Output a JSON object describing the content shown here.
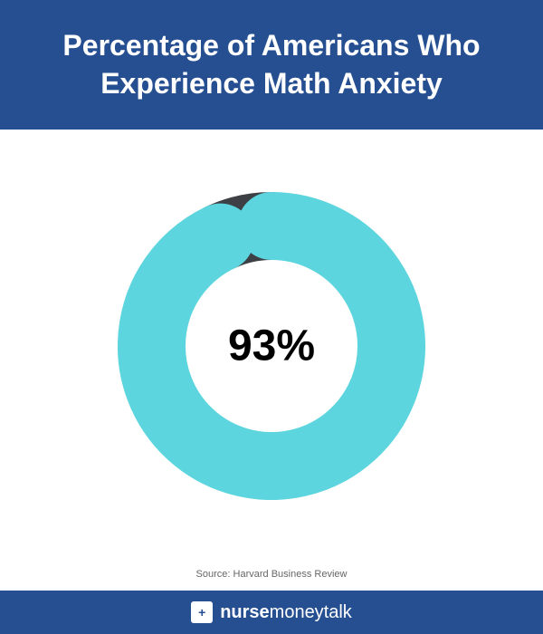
{
  "header": {
    "title": "Percentage of Americans Who Experience Math Anxiety",
    "background_color": "#254f91",
    "title_color": "#ffffff",
    "title_fontsize": 32,
    "title_weight": 700
  },
  "chart": {
    "type": "donut",
    "percentage": 93,
    "percentage_label": "93%",
    "percentage_fontsize": 48,
    "percentage_weight": 700,
    "percentage_color": "#000000",
    "primary_color": "#5dd5de",
    "secondary_color": "#3d4044",
    "background_color": "#ffffff",
    "outer_radius": 170,
    "inner_radius": 95,
    "start_angle": -90,
    "rounded_caps": true
  },
  "source": {
    "text": "Source: Harvard Business Review",
    "fontsize": 11,
    "color": "#666666"
  },
  "footer": {
    "background_color": "#254f91",
    "logo_symbol": "+",
    "brand_bold": "nurse",
    "brand_mid": "money",
    "brand_light": "talk",
    "fontsize": 20
  }
}
